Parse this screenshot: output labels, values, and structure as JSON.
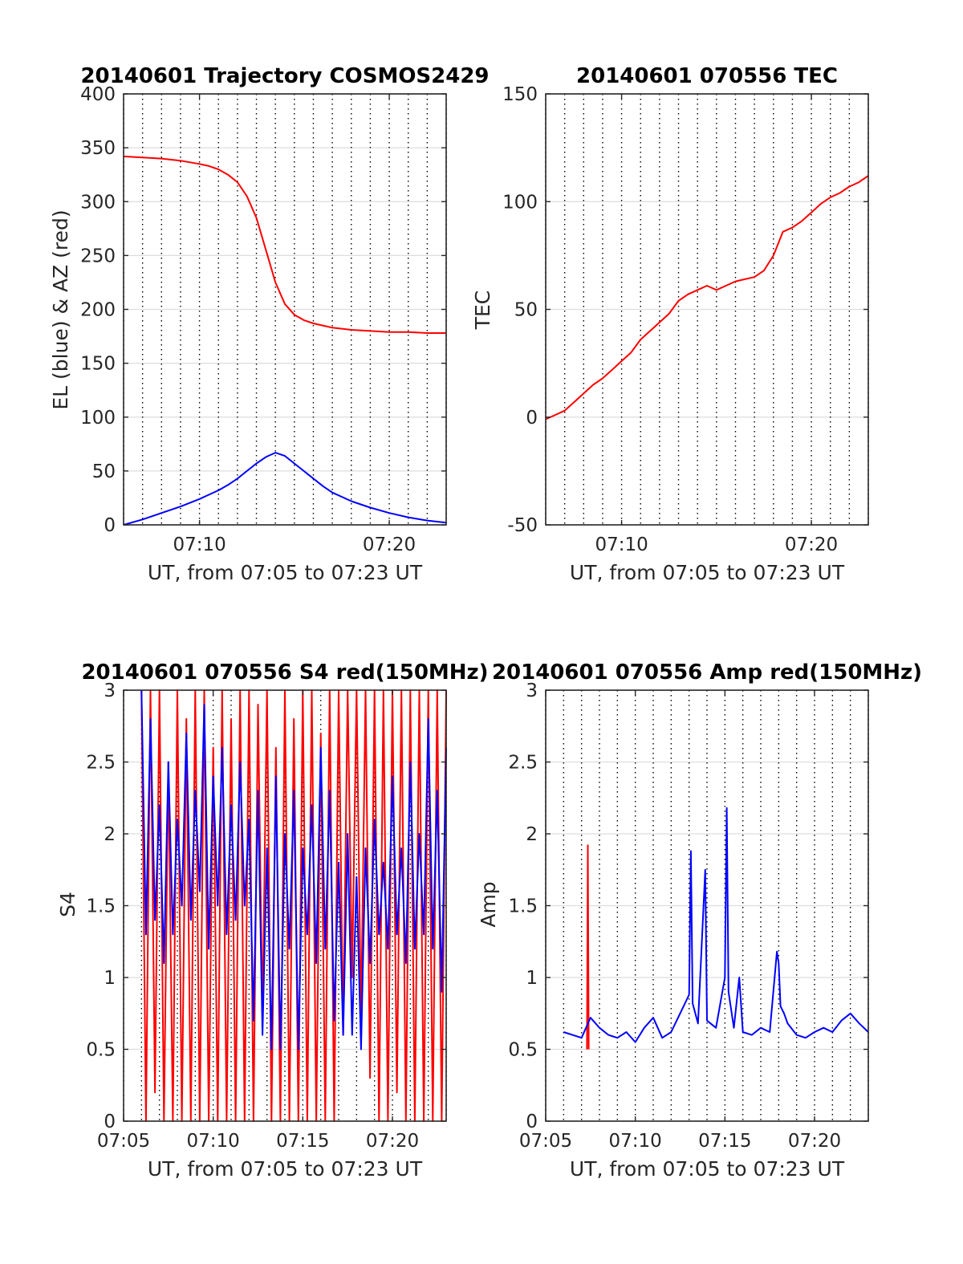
{
  "colors": {
    "el_series": "#0000ff",
    "az_series": "#ff0000",
    "grid_major": "#dddddd",
    "grid_dotted": "#000000",
    "axis": "#262626"
  },
  "chart_data": [
    {
      "type": "line",
      "title": "20140601 Trajectory COSMOS2429",
      "xlabel": "UT, from 07:05 to 07:23 UT",
      "ylabel": "EL (blue) & AZ (red)",
      "xlim_min": [
        6,
        23
      ],
      "ylim": [
        0,
        400
      ],
      "yticks": [
        0,
        50,
        100,
        150,
        200,
        250,
        300,
        350,
        400
      ],
      "ytick_labels": [
        "0",
        "50",
        "100",
        "150",
        "200",
        "250",
        "300",
        "350",
        "400"
      ],
      "xticks_min": [
        10,
        20
      ],
      "xtick_labels": [
        "07:10",
        "07:20"
      ],
      "grid": "on",
      "series": [
        {
          "color": "red",
          "x_min": [
            6.0,
            7.0,
            8.0,
            9.0,
            10.0,
            10.5,
            11.0,
            11.5,
            12.0,
            12.5,
            13.0,
            13.5,
            14.0,
            14.5,
            15.0,
            15.5,
            16.0,
            16.5,
            17.0,
            18.0,
            19.0,
            20.0,
            21.0,
            22.0,
            23.0
          ],
          "y": [
            342,
            341,
            340,
            338,
            335,
            333,
            330,
            325,
            318,
            305,
            285,
            255,
            225,
            205,
            195,
            190,
            187,
            185,
            183,
            181,
            180,
            179,
            179,
            178,
            178
          ]
        },
        {
          "color": "blue",
          "x_min": [
            6.0,
            7.0,
            8.0,
            9.0,
            10.0,
            11.0,
            11.5,
            12.0,
            12.5,
            13.0,
            13.5,
            14.0,
            14.5,
            15.0,
            15.5,
            16.0,
            16.5,
            17.0,
            18.0,
            19.0,
            20.0,
            21.0,
            22.0,
            23.0
          ],
          "y": [
            0,
            5,
            11,
            17,
            24,
            32,
            37,
            43,
            50,
            57,
            63,
            67,
            64,
            57,
            50,
            43,
            36,
            30,
            22,
            16,
            11,
            7,
            4,
            2
          ]
        }
      ]
    },
    {
      "type": "line",
      "title": "20140601 070556 TEC",
      "xlabel": "UT, from 07:05 to 07:23 UT",
      "ylabel": "TEC",
      "xlim_min": [
        6,
        23
      ],
      "ylim": [
        -50,
        150
      ],
      "yticks": [
        -50,
        0,
        50,
        100,
        150
      ],
      "ytick_labels": [
        "-50",
        "0",
        "50",
        "100",
        "150"
      ],
      "xticks_min": [
        10,
        20
      ],
      "xtick_labels": [
        "07:10",
        "07:20"
      ],
      "grid": "on",
      "series": [
        {
          "color": "red",
          "x_min": [
            6.0,
            6.5,
            7.0,
            7.5,
            8.0,
            8.5,
            9.0,
            9.5,
            10.0,
            10.5,
            11.0,
            11.5,
            12.0,
            12.5,
            13.0,
            13.5,
            14.0,
            14.5,
            15.0,
            15.5,
            16.0,
            16.5,
            17.0,
            17.5,
            18.0,
            18.5,
            19.0,
            19.5,
            20.0,
            20.5,
            21.0,
            21.5,
            22.0,
            22.5,
            23.0
          ],
          "y": [
            -1,
            1,
            3,
            7,
            11,
            15,
            18,
            22,
            26,
            30,
            36,
            40,
            44,
            48,
            54,
            57,
            59,
            61,
            59,
            61,
            63,
            64,
            65,
            68,
            75,
            86,
            88,
            91,
            95,
            99,
            102,
            104,
            107,
            109,
            112
          ]
        }
      ]
    },
    {
      "type": "line",
      "title": "20140601 070556 S4 red(150MHz)",
      "xlabel": "UT, from 07:05 to 07:23 UT",
      "ylabel": "S4",
      "xlim_min": [
        5,
        23
      ],
      "ylim": [
        0,
        3
      ],
      "yticks": [
        0,
        0.5,
        1,
        1.5,
        2,
        2.5,
        3
      ],
      "ytick_labels": [
        "0",
        "0.5",
        "1",
        "1.5",
        "2",
        "2.5",
        "3"
      ],
      "xticks_min": [
        5,
        10,
        15,
        20
      ],
      "xtick_labels": [
        "07:05",
        "07:10",
        "07:15",
        "07:20"
      ],
      "grid": "on",
      "series": [
        {
          "color": "red",
          "x_min": [
            6.0,
            6.25,
            6.5,
            6.75,
            7.0,
            7.25,
            7.5,
            7.75,
            8.0,
            8.25,
            8.5,
            8.75,
            9.0,
            9.25,
            9.5,
            9.75,
            10.0,
            10.25,
            10.5,
            10.75,
            11.0,
            11.25,
            11.5,
            11.75,
            12.0,
            12.25,
            12.5,
            12.75,
            13.0,
            13.25,
            13.5,
            13.75,
            14.0,
            14.25,
            14.5,
            14.75,
            15.0,
            15.25,
            15.5,
            15.75,
            16.0,
            16.25,
            16.5,
            16.75,
            17.0,
            17.25,
            17.5,
            17.75,
            18.0,
            18.25,
            18.5,
            18.75,
            19.0,
            19.25,
            19.5,
            19.75,
            20.0,
            20.25,
            20.5,
            20.75,
            21.0,
            21.25,
            21.5,
            21.75,
            22.0,
            22.25,
            22.5,
            22.75,
            23.0
          ],
          "y": [
            3,
            0,
            3,
            0.2,
            3,
            0,
            2.5,
            0,
            3,
            0,
            2.8,
            0,
            3,
            0,
            3,
            0,
            2.6,
            0,
            3,
            0,
            2.8,
            0,
            3,
            0,
            3,
            0,
            2.9,
            0.7,
            3,
            0,
            2.6,
            0,
            3,
            0,
            2.8,
            0,
            3,
            0,
            3,
            0,
            2.7,
            0,
            3,
            0,
            3,
            0.6,
            3,
            1.0,
            3,
            0.7,
            3,
            0.3,
            3,
            0,
            3,
            0,
            3,
            0.2,
            3,
            0,
            3,
            0,
            3,
            0,
            3,
            0,
            3,
            0,
            3
          ]
        },
        {
          "color": "blue",
          "x_min": [
            6.0,
            6.25,
            6.5,
            6.75,
            7.0,
            7.25,
            7.5,
            7.75,
            8.0,
            8.25,
            8.5,
            8.75,
            9.0,
            9.25,
            9.5,
            9.75,
            10.0,
            10.25,
            10.5,
            10.75,
            11.0,
            11.25,
            11.5,
            11.75,
            12.0,
            12.25,
            12.5,
            12.75,
            13.0,
            13.25,
            13.5,
            13.75,
            14.0,
            14.25,
            14.5,
            14.75,
            15.0,
            15.25,
            15.5,
            15.75,
            16.0,
            16.25,
            16.5,
            16.75,
            17.0,
            17.25,
            17.5,
            17.75,
            18.0,
            18.25,
            18.5,
            18.75,
            19.0,
            19.25,
            19.5,
            19.75,
            20.0,
            20.25,
            20.5,
            20.75,
            21.0,
            21.25,
            21.5,
            21.75,
            22.0,
            22.25,
            22.5,
            22.75,
            23.0
          ],
          "y": [
            3,
            1.3,
            2.8,
            1.4,
            2.2,
            1.1,
            2.5,
            1.3,
            2.1,
            1.5,
            2.7,
            1.4,
            2.3,
            1.6,
            2.9,
            1.2,
            2.4,
            1.5,
            2.6,
            1.3,
            2.2,
            1.4,
            2.5,
            1.5,
            2.1,
            0.7,
            2.3,
            0.6,
            1.9,
            0.5,
            2.4,
            0.5,
            2.0,
            1.2,
            2.3,
            0.5,
            1.9,
            1.3,
            2.2,
            1.1,
            2.6,
            1.2,
            2.3,
            0.7,
            1.8,
            0.6,
            2.0,
            0.6,
            1.7,
            0.5,
            1.9,
            1.1,
            2.1,
            1.3,
            1.8,
            1.2,
            2.4,
            1.3,
            1.9,
            1.1,
            2.5,
            1.2,
            2.0,
            1.3,
            2.8,
            1.2,
            2.3,
            0.9,
            2.6
          ]
        }
      ]
    },
    {
      "type": "line",
      "title": "20140601 070556 Amp red(150MHz)",
      "xlabel": "UT, from 07:05 to 07:23 UT",
      "ylabel": "Amp",
      "xlim_min": [
        5,
        23
      ],
      "ylim": [
        0,
        3
      ],
      "yticks": [
        0,
        0.5,
        1,
        1.5,
        2,
        2.5,
        3
      ],
      "ytick_labels": [
        "0",
        "0.5",
        "1",
        "1.5",
        "2",
        "2.5",
        "3"
      ],
      "xticks_min": [
        5,
        10,
        15,
        20
      ],
      "xtick_labels": [
        "07:05",
        "07:10",
        "07:15",
        "07:20"
      ],
      "grid": "on",
      "series": [
        {
          "color": "red",
          "x_min": [
            7.3,
            7.35,
            7.4
          ],
          "y": [
            0.5,
            1.92,
            0.5
          ]
        },
        {
          "color": "blue",
          "x_min": [
            6.0,
            6.5,
            7.0,
            7.5,
            8.0,
            8.5,
            9.0,
            9.5,
            10.0,
            10.5,
            11.0,
            11.5,
            12.0,
            12.5,
            13.0,
            13.1,
            13.2,
            13.5,
            13.9,
            14.0,
            14.5,
            15.0,
            15.1,
            15.2,
            15.5,
            15.8,
            16.0,
            16.5,
            17.0,
            17.5,
            17.9,
            18.0,
            18.1,
            18.3,
            18.5,
            19.0,
            19.5,
            20.0,
            20.5,
            21.0,
            21.5,
            22.0,
            22.5,
            23.0
          ],
          "y": [
            0.62,
            0.6,
            0.58,
            0.72,
            0.65,
            0.6,
            0.58,
            0.62,
            0.55,
            0.65,
            0.72,
            0.58,
            0.62,
            0.75,
            0.88,
            1.88,
            0.82,
            0.68,
            1.75,
            0.7,
            0.65,
            1.0,
            2.18,
            0.9,
            0.65,
            1.0,
            0.62,
            0.6,
            0.65,
            0.62,
            1.18,
            1.1,
            0.8,
            0.75,
            0.68,
            0.6,
            0.58,
            0.62,
            0.65,
            0.62,
            0.7,
            0.75,
            0.68,
            0.62
          ]
        }
      ]
    }
  ]
}
